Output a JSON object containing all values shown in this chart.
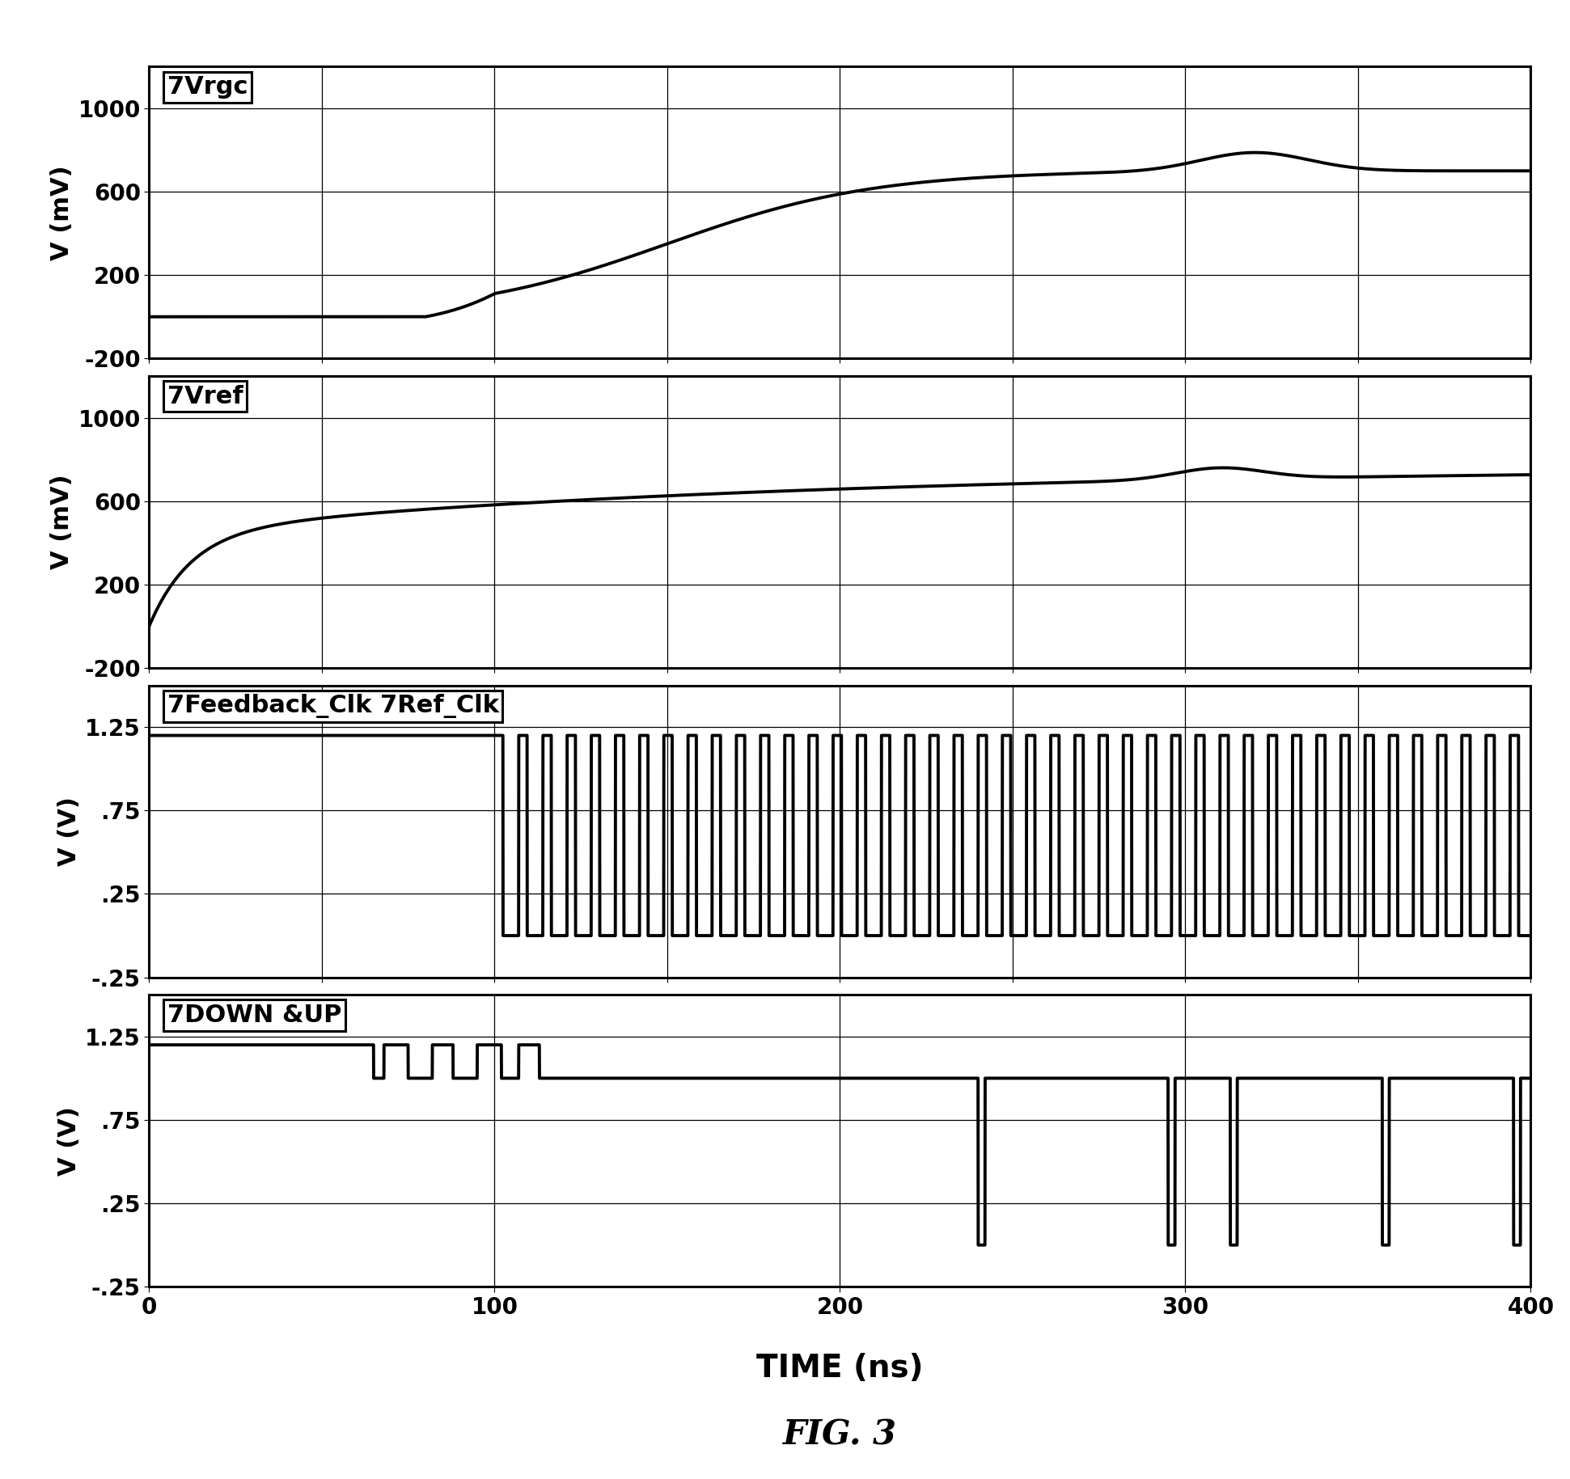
{
  "xlim": [
    0,
    400
  ],
  "xlabel": "TIME (ns)",
  "xticks": [
    0,
    100,
    200,
    300,
    400
  ],
  "panel1_label": "7Vrgc",
  "panel1_ylabel": "V (mV)",
  "panel1_ylim": [
    -200,
    1200
  ],
  "panel1_yticks": [
    -200,
    200,
    600,
    1000
  ],
  "panel1_ytick_labels": [
    "-200",
    "200",
    "600",
    "1000"
  ],
  "panel2_label": "7Vref",
  "panel2_ylabel": "V (mV)",
  "panel2_ylim": [
    -200,
    1200
  ],
  "panel2_yticks": [
    -200,
    200,
    600,
    1000
  ],
  "panel2_ytick_labels": [
    "-200",
    "200",
    "600",
    "1000"
  ],
  "panel3_label": "7Feedback_Clk 7Ref_Clk",
  "panel3_ylabel": "V (V)",
  "panel3_ylim": [
    -0.25,
    1.5
  ],
  "panel3_yticks": [
    -0.25,
    0.25,
    0.75,
    1.25
  ],
  "panel3_ytick_labels": [
    "-.25",
    ".25",
    ".75",
    "1.25"
  ],
  "panel4_label": "7DOWN &UP",
  "panel4_ylabel": "V (V)",
  "panel4_ylim": [
    -0.25,
    1.5
  ],
  "panel4_yticks": [
    -0.25,
    0.25,
    0.75,
    1.25
  ],
  "panel4_ytick_labels": [
    "-.25",
    ".25",
    ".75",
    "1.25"
  ],
  "line_color": "#000000",
  "background_color": "#ffffff",
  "label_fontsize": 22,
  "tick_fontsize": 20,
  "xlabel_fontsize": 28,
  "ylabel_fontsize": 22,
  "fig_caption": "FIG. 3",
  "fig_caption_fontsize": 30
}
